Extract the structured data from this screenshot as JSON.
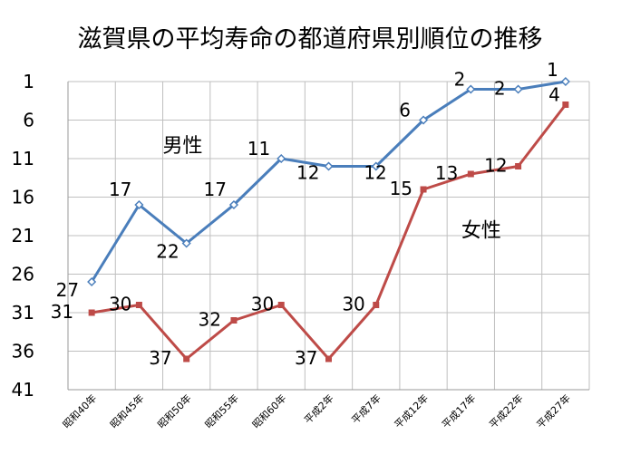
{
  "chart_data": {
    "type": "line",
    "title": "滋賀県の平均寿命の都道府県別順位の推移",
    "categories": [
      "昭和40年",
      "昭和45年",
      "昭和50年",
      "昭和55年",
      "昭和60年",
      "平成2年",
      "平成7年",
      "平成12年",
      "平成17年",
      "平成22年",
      "平成27年"
    ],
    "ylim": [
      1,
      41
    ],
    "y_inverted": true,
    "yticks": [
      1,
      6,
      11,
      16,
      21,
      26,
      31,
      36,
      41
    ],
    "grid": true,
    "legend": "none",
    "series": [
      {
        "name": "男性",
        "color": "#4a7ebb",
        "marker": "diamond",
        "values": [
          27,
          17,
          22,
          17,
          11,
          12,
          12,
          6,
          2,
          2,
          1
        ]
      },
      {
        "name": "女性",
        "color": "#be4b48",
        "marker": "square",
        "values": [
          31,
          30,
          37,
          32,
          30,
          37,
          30,
          15,
          13,
          12,
          4
        ]
      }
    ]
  }
}
